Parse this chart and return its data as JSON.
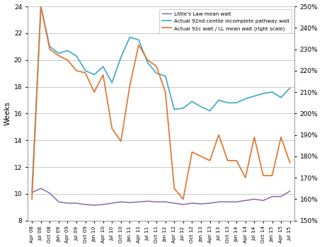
{
  "ylabel_left": "Weeks",
  "ylim_left": [
    8,
    24
  ],
  "ylim_right": [
    1.5,
    2.5
  ],
  "yticks_left": [
    8,
    10,
    12,
    14,
    16,
    18,
    20,
    22,
    24
  ],
  "yticks_right": [
    1.5,
    1.6,
    1.7,
    1.8,
    1.9,
    2.0,
    2.1,
    2.2,
    2.3,
    2.4,
    2.5
  ],
  "xlabels": [
    "Apr 08",
    "Jul 08",
    "Oct 08",
    "Jan 09",
    "Apr 09",
    "Jul 09",
    "Oct 09",
    "Jan 10",
    "Apr 10",
    "Jul 10",
    "Oct 10",
    "Jan 11",
    "Apr 11",
    "Jul 11",
    "Oct 11",
    "Jan 12",
    "Apr 12",
    "Jul 12",
    "Oct 12",
    "Jan 13",
    "Apr 13",
    "Jul 13",
    "Oct 13",
    "Jan 14",
    "Apr 14",
    "Jul 14",
    "Oct 14",
    "Jan 15",
    "Apr 15",
    "Jul 15"
  ],
  "color_ll": "#7B5EA7",
  "color_92nd": "#4BACC6",
  "color_ratio": "#E07B39",
  "legend_labels": [
    "Little's Law mean wait",
    "Actual 92nd centile incomplete pathway wait",
    "Actual 92c wait / LL mean wait (right scale)"
  ],
  "ll_data": [
    10.1,
    10.4,
    10.05,
    9.4,
    9.3,
    9.3,
    9.2,
    9.15,
    9.2,
    9.3,
    9.4,
    9.35,
    9.4,
    9.45,
    9.4,
    9.4,
    9.3,
    9.2,
    9.3,
    9.25,
    9.3,
    9.4,
    9.4,
    9.4,
    9.5,
    9.6,
    9.5,
    9.8,
    9.8,
    10.2
  ],
  "actual_92nd_data": [
    10.2,
    24.0,
    21.0,
    20.5,
    20.7,
    20.3,
    19.2,
    18.9,
    19.5,
    18.3,
    20.2,
    21.7,
    21.5,
    19.8,
    19.0,
    18.8,
    16.3,
    16.4,
    16.9,
    16.5,
    16.2,
    17.0,
    16.8,
    16.8,
    17.1,
    17.3,
    17.5,
    17.6,
    17.2,
    17.9
  ],
  "ratio_data": [
    1.6,
    2.5,
    2.3,
    2.27,
    2.25,
    2.2,
    2.19,
    2.1,
    2.18,
    1.93,
    1.87,
    2.13,
    2.32,
    2.25,
    2.22,
    2.1,
    1.65,
    1.6,
    1.82,
    1.8,
    1.78,
    1.9,
    1.78,
    1.78,
    1.7,
    1.89,
    1.71,
    1.71,
    1.89,
    1.77
  ],
  "background_color": "#FFFFFF",
  "grid_color": "#C0C0C0",
  "spine_color": "#999999"
}
